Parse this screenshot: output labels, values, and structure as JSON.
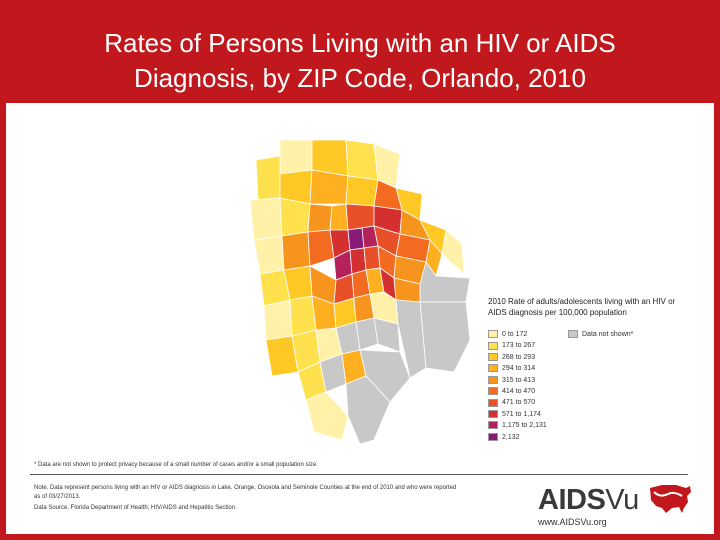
{
  "header": {
    "title_line_1": "Rates of Persons Living with an HIV or AIDS",
    "title_line_2": "Diagnosis, by ZIP Code, Orlando, 2010"
  },
  "legend": {
    "title": "2010 Rate of adults/adolescents living with an HIV or AIDS diagnosis per 100,000 population",
    "items": [
      {
        "label": "0 to 172",
        "color": "#fff2a8"
      },
      {
        "label": "173 to 267",
        "color": "#ffe14d"
      },
      {
        "label": "268 to 293",
        "color": "#ffc825"
      },
      {
        "label": "294 to 314",
        "color": "#ffb020"
      },
      {
        "label": "315 to 413",
        "color": "#f7941d"
      },
      {
        "label": "414 to 470",
        "color": "#f26b21"
      },
      {
        "label": "471 to 570",
        "color": "#e8502a"
      },
      {
        "label": "571 to 1,174",
        "color": "#d4302f"
      },
      {
        "label": "1,175 to 2,131",
        "color": "#b5215a"
      },
      {
        "label": "2,132",
        "color": "#8a1a78"
      }
    ],
    "suppressed": {
      "label": "Data not shown*",
      "color": "#c8c8c8"
    }
  },
  "map_colors": {
    "suppressed": "#c8c8c8",
    "border": "#ffffff"
  },
  "footnote": "* Data are not shown to protect privacy because of a small number of cases and/or a small population size.",
  "note": "Note. Data represent persons living with an HIV or AIDS diagnosis in Lake, Orange, Osceola and Seminole Counties at the end of 2010 and who were reported as of 03/27/2013.",
  "source": "Data Source. Florida Department of Health, HIV/AIDS and Hepatitis Section.",
  "logo": {
    "text_bold": "AIDS",
    "text_light": "Vu",
    "icon": "us-map-icon"
  },
  "website": "www.AIDSVu.org",
  "theme": {
    "title_bar": "#c0181c",
    "title_text": "#ffffff"
  }
}
